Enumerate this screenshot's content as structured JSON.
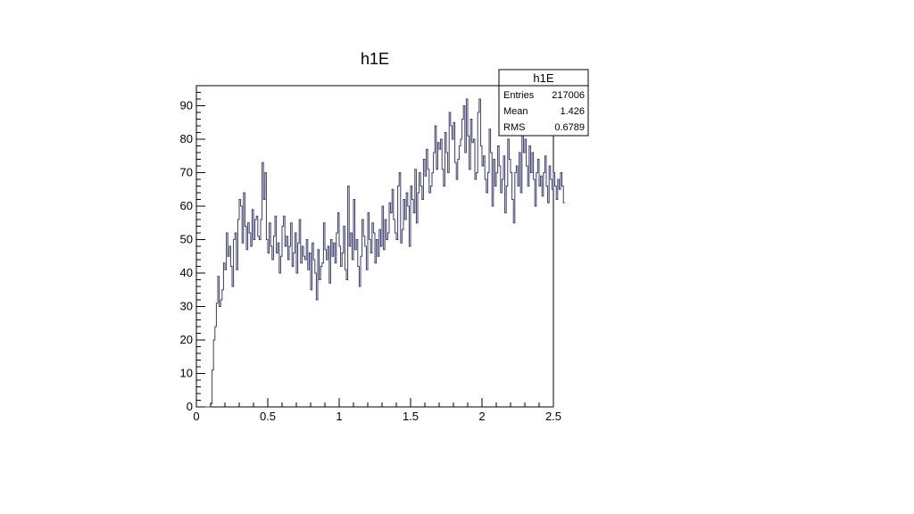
{
  "chart_data": {
    "type": "histogram",
    "title": "h1E",
    "xlim": [
      0,
      2.5
    ],
    "ylim": [
      0,
      96
    ],
    "x_ticks": [
      0,
      0.5,
      1,
      1.5,
      2,
      2.5
    ],
    "x_tick_labels": [
      "0",
      "0.5",
      "1",
      "1.5",
      "2",
      "2.5"
    ],
    "y_ticks": [
      0,
      10,
      20,
      30,
      40,
      50,
      60,
      70,
      80,
      90
    ],
    "y_tick_labels": [
      "0",
      "10",
      "20",
      "30",
      "40",
      "50",
      "60",
      "70",
      "80",
      "90"
    ],
    "line_color": "#3b3b6b",
    "grid": false,
    "bin_width": 0.01,
    "bin_start": 0,
    "counts": [
      0,
      0,
      0,
      0,
      0,
      0,
      0,
      0,
      0,
      0,
      1,
      11,
      20,
      24,
      31,
      39,
      30,
      32,
      35,
      43,
      41,
      52,
      45,
      48,
      42,
      36,
      50,
      52,
      41,
      56,
      62,
      60,
      49,
      64,
      54,
      47,
      55,
      52,
      48,
      59,
      50,
      56,
      57,
      51,
      50,
      56,
      73,
      62,
      70,
      50,
      46,
      55,
      48,
      44,
      51,
      57,
      46,
      49,
      40,
      45,
      54,
      57,
      48,
      51,
      44,
      48,
      55,
      42,
      46,
      52,
      40,
      49,
      56,
      43,
      48,
      45,
      44,
      50,
      41,
      46,
      35,
      49,
      44,
      40,
      32,
      47,
      38,
      42,
      43,
      55,
      47,
      44,
      48,
      37,
      50,
      45,
      49,
      43,
      52,
      58,
      48,
      42,
      46,
      54,
      41,
      38,
      66,
      48,
      52,
      44,
      62,
      47,
      50,
      42,
      36,
      45,
      56,
      51,
      48,
      41,
      58,
      50,
      46,
      55,
      52,
      43,
      50,
      45,
      53,
      48,
      60,
      47,
      56,
      50,
      52,
      61,
      58,
      65,
      56,
      52,
      50,
      66,
      70,
      49,
      53,
      62,
      56,
      64,
      60,
      48,
      66,
      62,
      58,
      71,
      55,
      64,
      70,
      66,
      62,
      74,
      69,
      77,
      71,
      64,
      66,
      70,
      76,
      84,
      71,
      79,
      77,
      80,
      71,
      66,
      82,
      76,
      70,
      88,
      84,
      80,
      85,
      73,
      68,
      74,
      78,
      80,
      86,
      90,
      76,
      92,
      81,
      71,
      86,
      79,
      80,
      68,
      70,
      88,
      92,
      78,
      72,
      75,
      68,
      64,
      70,
      83,
      76,
      60,
      74,
      66,
      70,
      78,
      72,
      64,
      68,
      75,
      58,
      66,
      80,
      74,
      70,
      62,
      55,
      70,
      72,
      66,
      76,
      64,
      83,
      76,
      80,
      72,
      66,
      78,
      70,
      76,
      68,
      60,
      70,
      74,
      66,
      69,
      63,
      70,
      75,
      66,
      61,
      72,
      68,
      65,
      70,
      66,
      62,
      68,
      65,
      70,
      66,
      61
    ]
  },
  "stats_box": {
    "title": "h1E",
    "rows": [
      {
        "label": "Entries",
        "value": "217006"
      },
      {
        "label": "Mean",
        "value": "1.426"
      },
      {
        "label": "RMS",
        "value": "0.6789"
      }
    ]
  }
}
